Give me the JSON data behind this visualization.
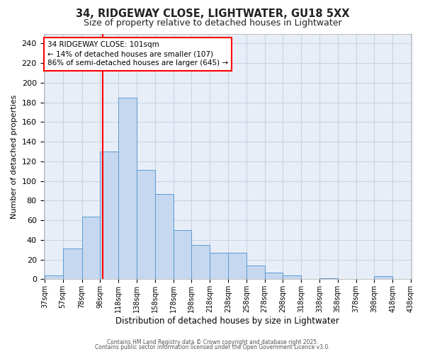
{
  "title1": "34, RIDGEWAY CLOSE, LIGHTWATER, GU18 5XX",
  "title2": "Size of property relative to detached houses in Lightwater",
  "xlabel": "Distribution of detached houses by size in Lightwater",
  "ylabel": "Number of detached properties",
  "bin_edges": [
    37,
    57,
    78,
    98,
    118,
    138,
    158,
    178,
    198,
    218,
    238,
    258,
    278,
    298,
    318,
    338,
    358,
    378,
    398,
    418,
    438
  ],
  "bar_heights": [
    4,
    31,
    64,
    130,
    185,
    111,
    87,
    50,
    35,
    27,
    27,
    14,
    7,
    4,
    0,
    1,
    0,
    0,
    3,
    0
  ],
  "bar_color": "#c5d8ef",
  "bar_edge_color": "#5b9bd5",
  "grid_color": "#c8d4e3",
  "bg_color": "#ffffff",
  "plot_bg_color": "#e8eef7",
  "red_line_x": 101,
  "annotation_line1": "34 RIDGEWAY CLOSE: 101sqm",
  "annotation_line2": "← 14% of detached houses are smaller (107)",
  "annotation_line3": "86% of semi-detached houses are larger (645) →",
  "ylim": [
    0,
    250
  ],
  "yticks": [
    0,
    20,
    40,
    60,
    80,
    100,
    120,
    140,
    160,
    180,
    200,
    220,
    240
  ],
  "footnote1": "Contains HM Land Registry data © Crown copyright and database right 2025.",
  "footnote2": "Contains public sector information licensed under the Open Government Licence v3.0."
}
